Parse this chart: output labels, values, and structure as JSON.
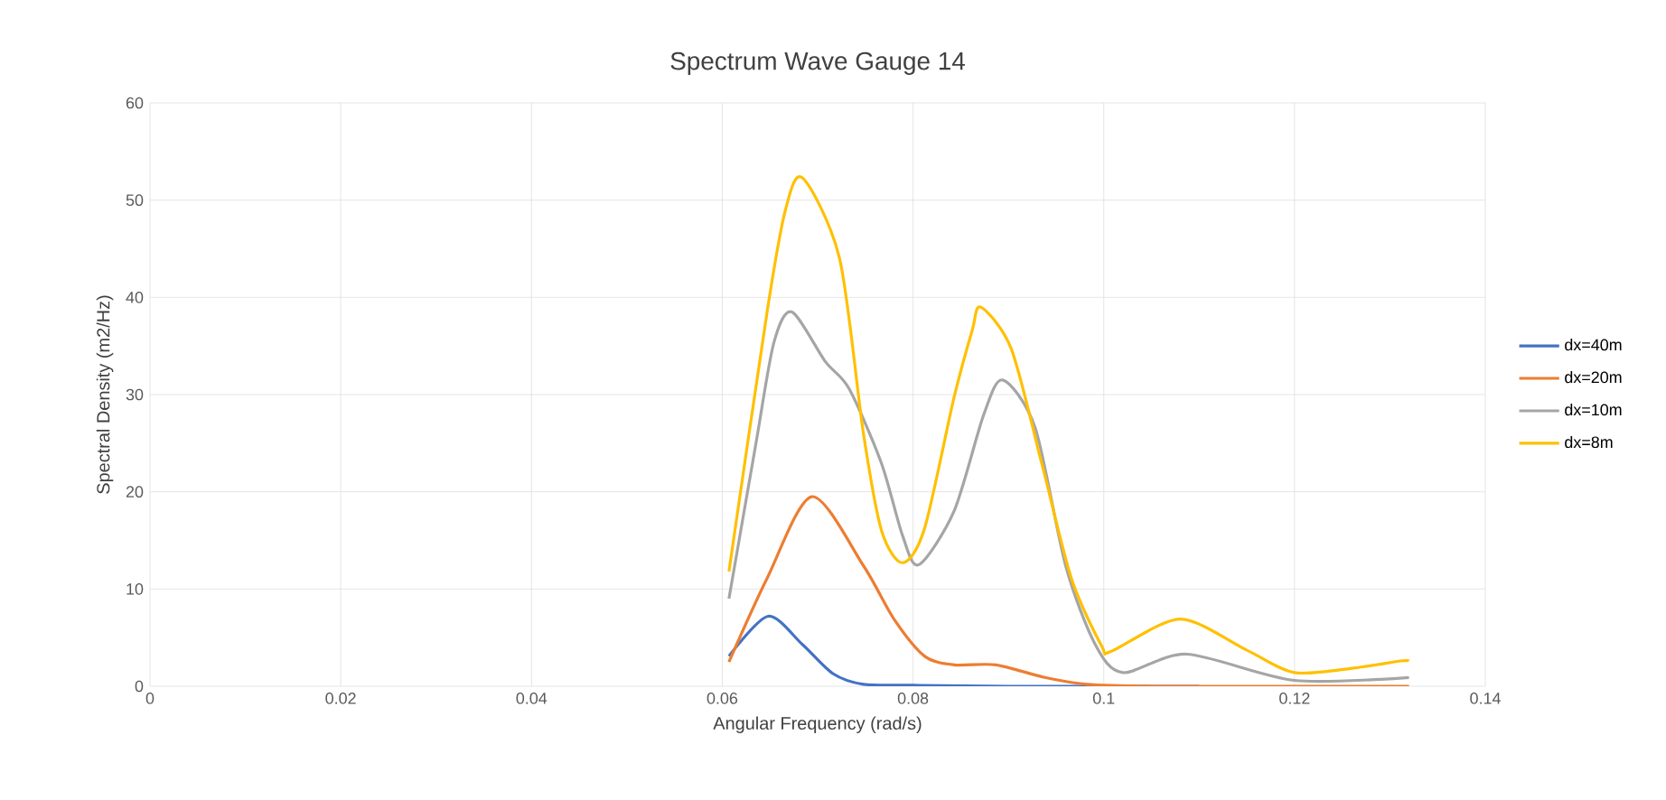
{
  "chart_data": {
    "type": "line",
    "title": "Spectrum Wave Gauge 14",
    "xlabel": "Angular Frequency (rad/s)",
    "ylabel": "Spectral Density (m2/Hz)",
    "xlim": [
      0,
      0.14
    ],
    "xticks": [
      0,
      0.02,
      0.04,
      0.06,
      0.08,
      0.1,
      0.12,
      0.14
    ],
    "ylim": [
      0,
      60
    ],
    "yticks": [
      0,
      10,
      20,
      30,
      40,
      50,
      60
    ],
    "grid": true,
    "legend": "right",
    "line_style": "solid",
    "marker": "none",
    "series": [
      {
        "name": "dx=40m",
        "color": "#4472c4",
        "x": [
          0.0607,
          0.0648,
          0.0684,
          0.0716,
          0.0748,
          0.08,
          0.09,
          0.1,
          0.11
        ],
        "values": [
          3.1,
          7.2,
          4.3,
          1.3,
          0.2,
          0.1,
          0,
          0,
          0
        ]
      },
      {
        "name": "dx=20m",
        "color": "#ed7d31",
        "x": [
          0.0607,
          0.0647,
          0.0694,
          0.0748,
          0.078,
          0.0812,
          0.0843,
          0.0887,
          0.0938,
          0.0982,
          0.105,
          0.115,
          0.125,
          0.132
        ],
        "values": [
          2.5,
          11.1,
          19.5,
          12.4,
          6.9,
          3.1,
          2.2,
          2.2,
          0.9,
          0.2,
          0,
          0,
          0,
          0
        ]
      },
      {
        "name": "dx=10m",
        "color": "#a5a5a5",
        "x": [
          0.0607,
          0.0635,
          0.0654,
          0.0673,
          0.0708,
          0.0733,
          0.0767,
          0.0789,
          0.0806,
          0.0843,
          0.0874,
          0.0894,
          0.0928,
          0.096,
          0.0991,
          0.102,
          0.1087,
          0.12,
          0.132
        ],
        "values": [
          9.0,
          24.8,
          35.3,
          38.5,
          33.4,
          30.6,
          22.9,
          15.5,
          12.5,
          18.0,
          27.9,
          31.5,
          26.6,
          12.4,
          4.3,
          1.4,
          3.3,
          0.6,
          0.9
        ]
      },
      {
        "name": "dx=8m",
        "color": "#ffc000",
        "x": [
          0.0607,
          0.0647,
          0.0666,
          0.0684,
          0.0723,
          0.0748,
          0.0767,
          0.0789,
          0.0812,
          0.0843,
          0.0862,
          0.0871,
          0.0903,
          0.0935,
          0.0966,
          0.0998,
          0.1008,
          0.108,
          0.115,
          0.12,
          0.1264,
          0.1311,
          0.132
        ],
        "values": [
          11.8,
          38.5,
          48.9,
          52.3,
          44.0,
          26.0,
          16.0,
          12.7,
          16.2,
          29.7,
          36.6,
          39.0,
          34.7,
          22.9,
          11.1,
          4.1,
          3.6,
          6.9,
          3.7,
          1.4,
          1.9,
          2.6,
          2.6
        ]
      }
    ]
  }
}
